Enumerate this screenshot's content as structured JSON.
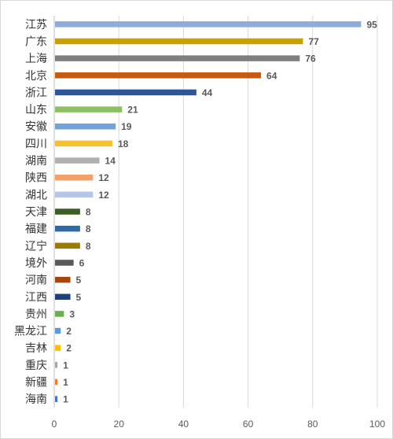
{
  "chart_data": {
    "type": "bar",
    "orientation": "horizontal",
    "categories": [
      "江苏",
      "广东",
      "上海",
      "北京",
      "浙江",
      "山东",
      "安徽",
      "四川",
      "湖南",
      "陕西",
      "湖北",
      "天津",
      "福建",
      "辽宁",
      "境外",
      "河南",
      "江西",
      "贵州",
      "黑龙江",
      "吉林",
      "重庆",
      "新疆",
      "海南"
    ],
    "values": [
      95,
      77,
      76,
      64,
      44,
      21,
      19,
      18,
      14,
      12,
      12,
      8,
      8,
      8,
      6,
      5,
      5,
      3,
      2,
      2,
      1,
      1,
      1
    ],
    "colors": [
      "#8faadc",
      "#c9a100",
      "#7f7f7f",
      "#c55a11",
      "#2f5597",
      "#8cc063",
      "#71a3db",
      "#f5c22c",
      "#b0b0b0",
      "#f4a06b",
      "#b4c7e7",
      "#3b5f23",
      "#2e6aa6",
      "#9a7b00",
      "#595959",
      "#a34612",
      "#213f78",
      "#6ab04c",
      "#5b9bd5",
      "#ffc000",
      "#a5a5a5",
      "#ed7d31",
      "#4472c4"
    ],
    "xlim": [
      0,
      100
    ],
    "xticks": [
      0,
      20,
      40,
      60,
      80,
      100
    ],
    "title": "",
    "xlabel": "",
    "ylabel": "",
    "grid": true,
    "legend": "none"
  }
}
